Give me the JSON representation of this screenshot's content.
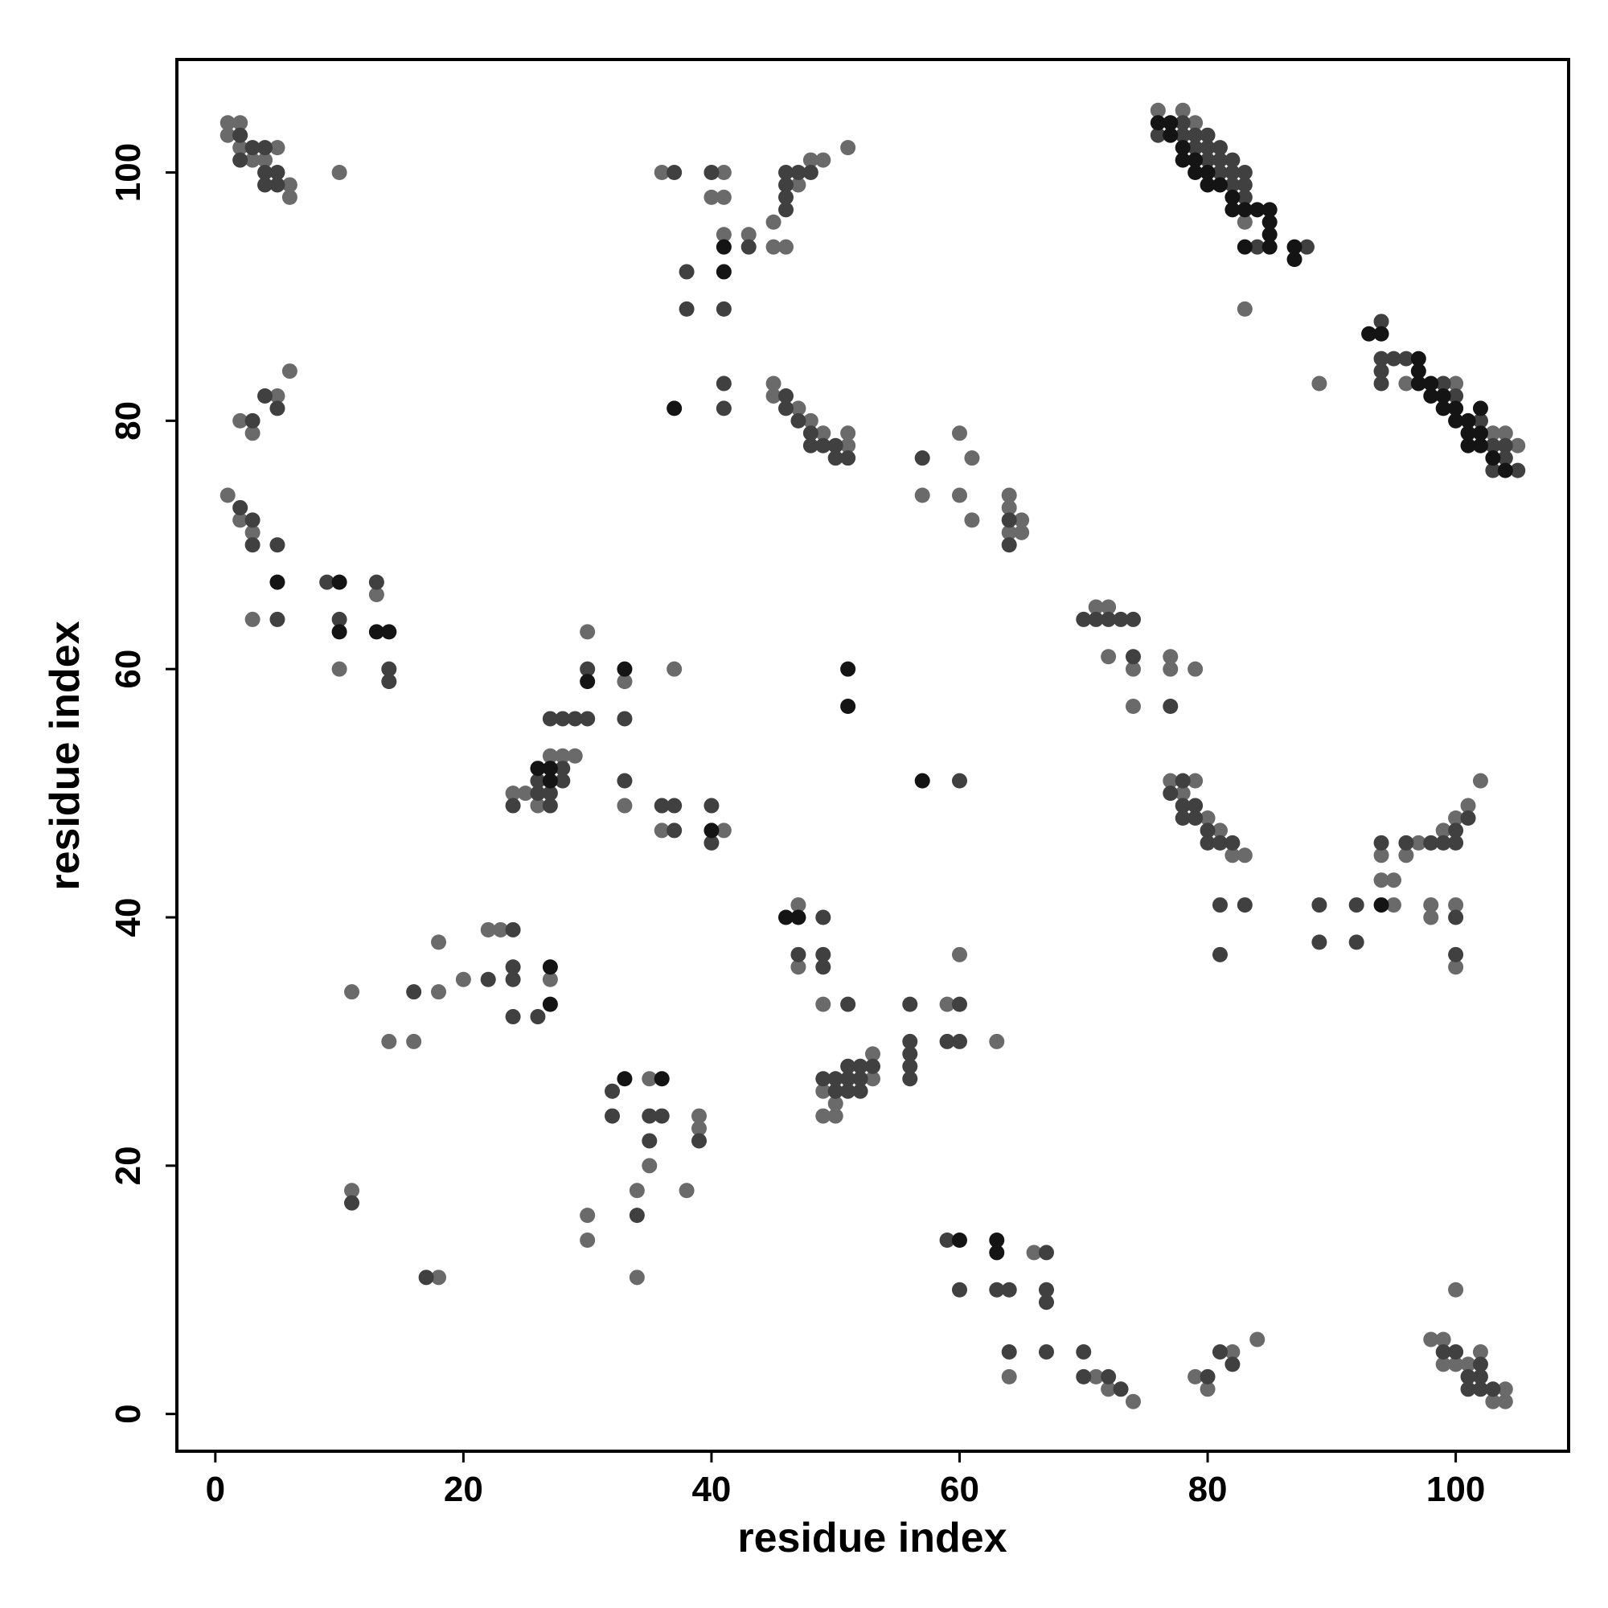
{
  "chart_data": {
    "type": "scatter",
    "x_label": "residue index",
    "y_label": "residue index",
    "xlim": [
      -3.1,
      109.1
    ],
    "ylim": [
      -3.0,
      109.1
    ],
    "xticks": [
      0,
      20,
      40,
      60,
      80,
      100
    ],
    "yticks": [
      0,
      20,
      40,
      60,
      80,
      100
    ],
    "grid": false,
    "series": [
      {
        "color": "#6a6a6a",
        "x": [
          1,
          2,
          1,
          2,
          3,
          4,
          5,
          6,
          6,
          10,
          6,
          5,
          2,
          3,
          1,
          2,
          3,
          3,
          10,
          13,
          11,
          14,
          16,
          18,
          18,
          20,
          22,
          23,
          27,
          11,
          18,
          24,
          25,
          26,
          27,
          28,
          29,
          30,
          33,
          33,
          36,
          37,
          41,
          35,
          35,
          34,
          39,
          39,
          38,
          30,
          30,
          34,
          36,
          41,
          40,
          41,
          41,
          43,
          45,
          45,
          46,
          47,
          48,
          49,
          51,
          45,
          45,
          47,
          48,
          49,
          51,
          51,
          57,
          60,
          61,
          60,
          61,
          64,
          64,
          64,
          65,
          65,
          47,
          47,
          49,
          49,
          49,
          50,
          50,
          53,
          53,
          59,
          60,
          63,
          64,
          66,
          71,
          72,
          74,
          71,
          72,
          72,
          74,
          74,
          77,
          77,
          79,
          77,
          79,
          78,
          80,
          81,
          82,
          83,
          95,
          94,
          95,
          94,
          96,
          97,
          99,
          100,
          101,
          102,
          98,
          98,
          100,
          100,
          79,
          80,
          82,
          84,
          98,
          99,
          99,
          100,
          101,
          102,
          103,
          104,
          104,
          100,
          76,
          78,
          79,
          83,
          83,
          89,
          96,
          105,
          104,
          100,
          103
        ],
        "y": [
          104,
          104,
          103,
          102,
          101,
          101,
          102,
          99,
          98,
          100,
          84,
          82,
          80,
          79,
          74,
          72,
          71,
          64,
          60,
          66,
          34,
          30,
          30,
          34,
          38,
          35,
          39,
          39,
          35,
          18,
          11,
          50,
          50,
          49,
          53,
          53,
          53,
          63,
          59,
          49,
          47,
          60,
          47,
          27,
          20,
          18,
          24,
          23,
          18,
          16,
          14,
          11,
          100,
          100,
          98,
          98,
          95,
          95,
          96,
          94,
          94,
          99,
          101,
          101,
          102,
          83,
          82,
          81,
          80,
          79,
          79,
          78,
          74,
          79,
          77,
          74,
          72,
          74,
          73,
          71,
          72,
          71,
          41,
          36,
          33,
          26,
          24,
          24,
          25,
          29,
          27,
          33,
          37,
          30,
          3,
          13,
          3,
          2,
          1,
          65,
          65,
          61,
          60,
          57,
          61,
          60,
          60,
          51,
          51,
          50,
          48,
          47,
          45,
          45,
          41,
          43,
          43,
          45,
          45,
          46,
          47,
          48,
          49,
          51,
          41,
          40,
          41,
          36,
          3,
          2,
          5,
          6,
          6,
          6,
          4,
          4,
          4,
          5,
          1,
          2,
          1,
          10,
          105,
          105,
          104,
          96,
          89,
          83,
          83,
          78,
          79,
          83,
          79
        ]
      },
      {
        "color": "#404040",
        "x": [
          2,
          2,
          3,
          4,
          4,
          5,
          4,
          5,
          4,
          5,
          3,
          2,
          3,
          3,
          5,
          5,
          9,
          10,
          13,
          14,
          14,
          16,
          22,
          24,
          24,
          24,
          24,
          26,
          11,
          17,
          24,
          26,
          26,
          27,
          27,
          27,
          28,
          28,
          28,
          29,
          30,
          30,
          33,
          33,
          36,
          37,
          37,
          40,
          40,
          32,
          32,
          35,
          36,
          35,
          39,
          34,
          37,
          40,
          43,
          38,
          38,
          41,
          41,
          41,
          46,
          46,
          46,
          46,
          47,
          48,
          46,
          46,
          47,
          48,
          48,
          49,
          50,
          50,
          51,
          60,
          57,
          64,
          64,
          47,
          49,
          49,
          49,
          51,
          49,
          50,
          50,
          51,
          51,
          51,
          52,
          52,
          52,
          53,
          56,
          56,
          56,
          56,
          56,
          60,
          59,
          60,
          59,
          60,
          63,
          64,
          64,
          67,
          67,
          67,
          67,
          70,
          70,
          72,
          73,
          70,
          71,
          72,
          73,
          74,
          74,
          77,
          78,
          77,
          78,
          79,
          78,
          79,
          80,
          80,
          81,
          82,
          81,
          83,
          81,
          89,
          89,
          92,
          92,
          94,
          96,
          98,
          99,
          100,
          100,
          101,
          100,
          100,
          80,
          81,
          82,
          99,
          100,
          101,
          101,
          102,
          102,
          102,
          103,
          76,
          78,
          78,
          79,
          79,
          80,
          80,
          80,
          81,
          81,
          81,
          82,
          82,
          82,
          83,
          83,
          83,
          84,
          88,
          94,
          94,
          94,
          94,
          95,
          96,
          99,
          100,
          102,
          103,
          103,
          104,
          104,
          105
        ],
        "y": [
          103,
          101,
          102,
          102,
          100,
          100,
          99,
          99,
          82,
          81,
          80,
          73,
          72,
          70,
          70,
          64,
          67,
          64,
          67,
          60,
          59,
          34,
          35,
          39,
          36,
          35,
          32,
          32,
          17,
          11,
          49,
          51,
          50,
          56,
          50,
          49,
          56,
          52,
          51,
          56,
          56,
          60,
          56,
          51,
          49,
          49,
          47,
          49,
          46,
          26,
          24,
          24,
          24,
          22,
          22,
          16,
          100,
          100,
          94,
          92,
          89,
          89,
          83,
          81,
          97,
          98,
          99,
          100,
          100,
          100,
          82,
          81,
          80,
          79,
          78,
          78,
          78,
          77,
          77,
          51,
          77,
          72,
          70,
          37,
          40,
          37,
          36,
          33,
          27,
          27,
          26,
          28,
          27,
          26,
          28,
          27,
          26,
          28,
          33,
          30,
          29,
          28,
          27,
          33,
          30,
          30,
          14,
          10,
          10,
          10,
          5,
          13,
          10,
          9,
          5,
          5,
          3,
          3,
          2,
          64,
          64,
          64,
          64,
          64,
          61,
          57,
          51,
          50,
          49,
          49,
          48,
          48,
          47,
          46,
          46,
          46,
          41,
          41,
          37,
          41,
          38,
          41,
          38,
          46,
          46,
          46,
          46,
          46,
          47,
          48,
          40,
          37,
          3,
          5,
          4,
          5,
          5,
          3,
          2,
          4,
          3,
          2,
          2,
          103,
          104,
          103,
          103,
          102,
          103,
          102,
          101,
          102,
          101,
          100,
          101,
          100,
          99,
          100,
          99,
          98,
          94,
          94,
          88,
          85,
          84,
          83,
          85,
          85,
          83,
          82,
          80,
          78,
          76,
          78,
          77,
          76
        ]
      },
      {
        "color": "#141414",
        "x": [
          5,
          10,
          10,
          13,
          14,
          26,
          27,
          27,
          30,
          33,
          27,
          27,
          33,
          36,
          40,
          41,
          41,
          37,
          51,
          51,
          57,
          46,
          47,
          60,
          63,
          63,
          94,
          93,
          94,
          76,
          77,
          77,
          78,
          78,
          79,
          79,
          80,
          80,
          81,
          82,
          82,
          83,
          84,
          85,
          85,
          85,
          85,
          87,
          87,
          83,
          97,
          97,
          97,
          98,
          98,
          99,
          99,
          100,
          100,
          101,
          101,
          101,
          102,
          102,
          102,
          103,
          104
        ],
        "y": [
          67,
          67,
          63,
          63,
          63,
          52,
          52,
          51,
          59,
          60,
          36,
          33,
          27,
          27,
          47,
          94,
          92,
          81,
          60,
          57,
          51,
          40,
          40,
          14,
          14,
          13,
          41,
          87,
          87,
          104,
          104,
          103,
          102,
          101,
          101,
          100,
          100,
          99,
          99,
          98,
          97,
          97,
          97,
          97,
          96,
          95,
          94,
          94,
          93,
          94,
          85,
          84,
          83,
          83,
          82,
          82,
          81,
          81,
          80,
          80,
          79,
          78,
          81,
          79,
          78,
          77,
          76
        ]
      }
    ]
  }
}
